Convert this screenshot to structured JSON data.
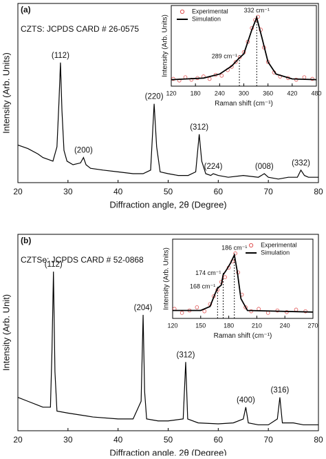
{
  "chart_data": [
    {
      "type": "line",
      "panel_label": "(a)",
      "subtitle": "CZTS: JCPDS CARD # 26-0575",
      "xlabel": "Diffraction angle, 2θ (Degree)",
      "ylabel": "Intensity (Arb. Units)",
      "xlim": [
        20,
        80
      ],
      "xticks": [
        20,
        30,
        40,
        50,
        60,
        70,
        80
      ],
      "ylim": [
        0,
        100
      ],
      "color": "#000000",
      "x": [
        20,
        22,
        24,
        25,
        26,
        27,
        27.8,
        28.2,
        28.5,
        28.8,
        29.2,
        29.8,
        31,
        32.5,
        33.1,
        33.6,
        34.5,
        37,
        40,
        43,
        45,
        46.5,
        47.2,
        47.7,
        48.4,
        50,
        52,
        54,
        55.5,
        56.2,
        56.7,
        57.5,
        58.5,
        59,
        60,
        62,
        65,
        68,
        69.2,
        70,
        72,
        74,
        75.8,
        76.5,
        77.2,
        78,
        80
      ],
      "values": [
        21,
        19,
        16,
        14,
        13,
        12,
        20,
        45,
        67,
        40,
        18,
        12,
        10,
        11,
        14,
        10,
        8,
        7,
        6,
        5,
        5,
        7,
        44,
        20,
        6,
        5,
        4,
        4,
        6,
        27,
        12,
        5,
        4,
        5,
        4,
        3,
        4,
        3,
        5,
        3,
        2,
        3,
        3,
        7,
        4,
        3,
        3
      ],
      "annotations": [
        {
          "label": "(112)",
          "x": 28.5
        },
        {
          "label": "(200)",
          "x": 33.1
        },
        {
          "label": "(220)",
          "x": 47.2
        },
        {
          "label": "(312)",
          "x": 56.2
        },
        {
          "label": "(224)",
          "x": 59
        },
        {
          "label": "(008)",
          "x": 69.2
        },
        {
          "label": "(332)",
          "x": 76.5
        }
      ]
    },
    {
      "type": "line",
      "xlabel": "Raman shift (cm⁻¹)",
      "ylabel": "Intensity (Arb. Units)",
      "xlim": [
        120,
        480
      ],
      "xticks": [
        120,
        180,
        240,
        300,
        360,
        420,
        480
      ],
      "ylim": [
        0,
        100
      ],
      "legend": "upper left",
      "series": [
        {
          "name": "Experimental",
          "color": "#e05050",
          "mode": "markers",
          "x": [
            125,
            140,
            155,
            170,
            185,
            200,
            215,
            230,
            245,
            260,
            270,
            280,
            290,
            300,
            310,
            320,
            328,
            335,
            342,
            350,
            360,
            375,
            390,
            410,
            430,
            450,
            470
          ],
          "values": [
            9,
            7,
            11,
            8,
            10,
            12,
            9,
            14,
            13,
            20,
            24,
            30,
            36,
            42,
            55,
            72,
            82,
            86,
            70,
            48,
            30,
            17,
            12,
            10,
            8,
            11,
            9
          ]
        },
        {
          "name": "Simulation",
          "color": "#000000",
          "mode": "line",
          "x": [
            120,
            200,
            240,
            270,
            289,
            300,
            320,
            332,
            345,
            360,
            380,
            420,
            480
          ],
          "values": [
            8,
            10,
            15,
            25,
            35,
            40,
            70,
            85,
            60,
            30,
            15,
            9,
            8
          ]
        }
      ],
      "annotations": [
        {
          "label": "289 cm⁻¹",
          "x": 289
        },
        {
          "label": "332 cm⁻¹",
          "x": 332
        }
      ]
    },
    {
      "type": "line",
      "panel_label": "(b)",
      "subtitle": "CZTSe: JCPDS CARD # 52-0868",
      "xlabel": "Diffraction angle, 2θ (Degree)",
      "ylabel": "Intensity (Arb. Unit)",
      "xlim": [
        20,
        80
      ],
      "xticks": [
        20,
        30,
        40,
        50,
        60,
        70,
        80
      ],
      "ylim": [
        0,
        100
      ],
      "color": "#000000",
      "x": [
        20,
        22,
        24,
        25,
        26.5,
        26.8,
        27.1,
        27.4,
        27.8,
        30,
        35,
        40,
        43,
        44.6,
        45,
        45.3,
        45.7,
        48,
        50,
        53,
        53.5,
        53.9,
        56,
        60,
        63,
        65,
        65.5,
        66,
        68,
        70,
        71.8,
        72.3,
        72.8,
        75,
        77,
        80
      ],
      "values": [
        17,
        15,
        13,
        12,
        12,
        40,
        81,
        30,
        10,
        9,
        7,
        6,
        6,
        15,
        59,
        20,
        6,
        5,
        5,
        6,
        35,
        6,
        4,
        3.5,
        4,
        6,
        12,
        4,
        3,
        3,
        6,
        17,
        4,
        4,
        3,
        3
      ],
      "annotations": [
        {
          "label": "(112)",
          "x": 27.1
        },
        {
          "label": "(204)",
          "x": 45
        },
        {
          "label": "(312)",
          "x": 53.5
        },
        {
          "label": "(400)",
          "x": 65.5
        },
        {
          "label": "(316)",
          "x": 72.3
        }
      ]
    },
    {
      "type": "line",
      "xlabel": "Raman shift (cm⁻¹)",
      "ylabel": "Intensity (Arb. Units)",
      "xlim": [
        120,
        270
      ],
      "xticks": [
        120,
        150,
        180,
        210,
        240,
        270
      ],
      "ylim": [
        0,
        100
      ],
      "legend": "upper right",
      "series": [
        {
          "name": "Experimental",
          "color": "#e05050",
          "mode": "markers",
          "x": [
            122,
            130,
            138,
            146,
            154,
            160,
            164,
            168,
            172,
            176,
            180,
            184,
            187,
            190,
            194,
            198,
            204,
            212,
            222,
            232,
            242,
            252,
            262
          ],
          "values": [
            12,
            7,
            10,
            14,
            9,
            18,
            28,
            36,
            46,
            52,
            64,
            72,
            82,
            58,
            30,
            14,
            9,
            12,
            7,
            10,
            8,
            11,
            9
          ]
        },
        {
          "name": "Simulation",
          "color": "#000000",
          "mode": "line",
          "x": [
            120,
            150,
            160,
            165,
            168,
            172,
            174,
            178,
            182,
            186,
            189,
            193,
            200,
            270
          ],
          "values": [
            10,
            10,
            15,
            30,
            38,
            42,
            55,
            62,
            70,
            80,
            60,
            25,
            10,
            8
          ]
        }
      ],
      "annotations": [
        {
          "label": "168 cm⁻¹",
          "x": 168
        },
        {
          "label": "174 cm⁻¹",
          "x": 174
        },
        {
          "label": "186 cm⁻¹",
          "x": 186
        }
      ]
    }
  ]
}
